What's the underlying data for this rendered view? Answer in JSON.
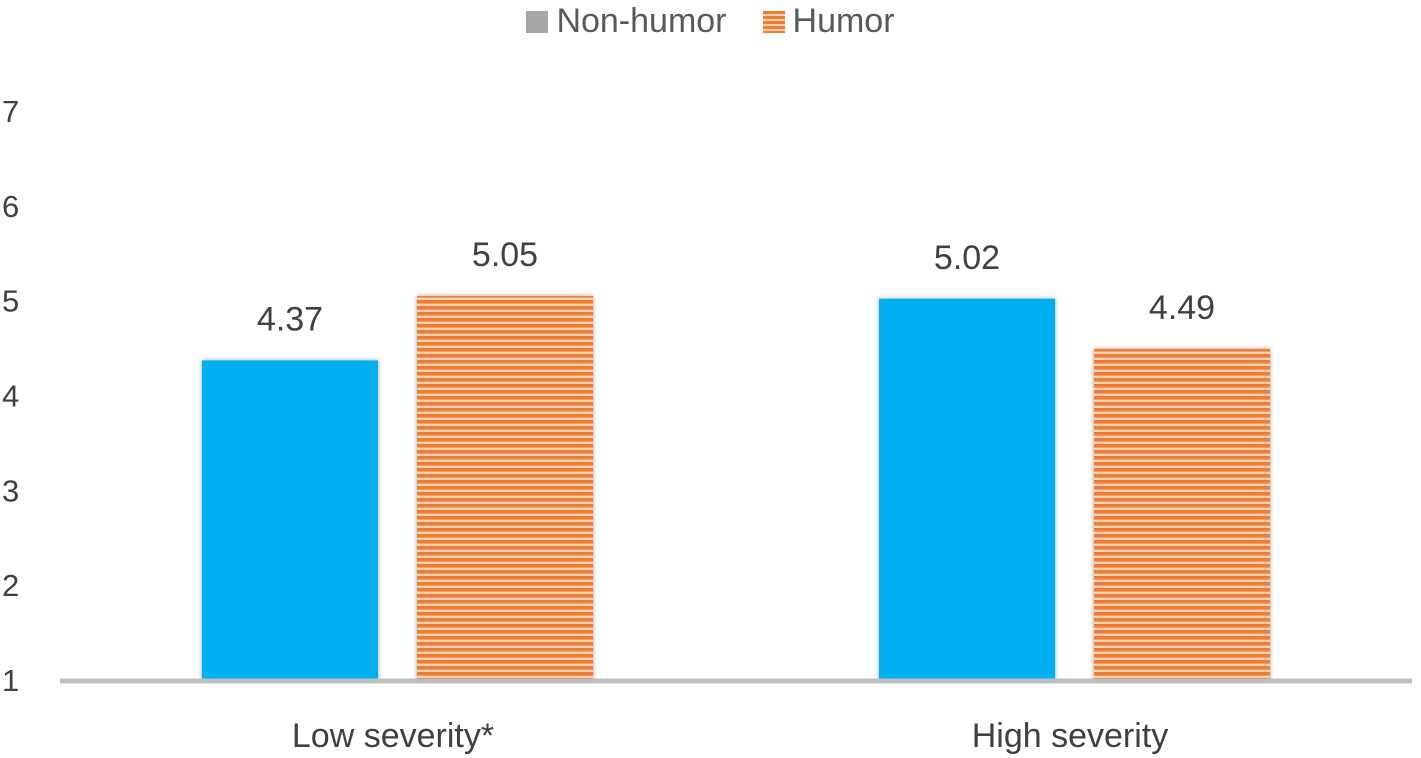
{
  "legend": {
    "series_1": "Non-humor",
    "series_2": "Humor"
  },
  "colors": {
    "non_humor_bar": "#00b0f0",
    "non_humor_legend": "#a6a6a6",
    "humor_bar": "#ed7d31",
    "humor_stripe_light": "#f8d1b4",
    "axis": "#bfbfbf",
    "text": "#404040"
  },
  "chart_data": {
    "type": "bar",
    "categories": [
      "Low severity*",
      "High severity"
    ],
    "series": [
      {
        "name": "Non-humor",
        "values": [
          4.37,
          5.02
        ]
      },
      {
        "name": "Humor",
        "values": [
          5.05,
          4.49
        ]
      }
    ],
    "data_labels": [
      [
        "4.37",
        "5.02"
      ],
      [
        "5.05",
        "4.49"
      ]
    ],
    "yticks": [
      "1",
      "2",
      "3",
      "4",
      "5",
      "6",
      "7"
    ],
    "ylim": [
      1,
      7
    ],
    "title": "",
    "xlabel": "",
    "ylabel": "",
    "grid": false,
    "legend_position": "top-center"
  }
}
